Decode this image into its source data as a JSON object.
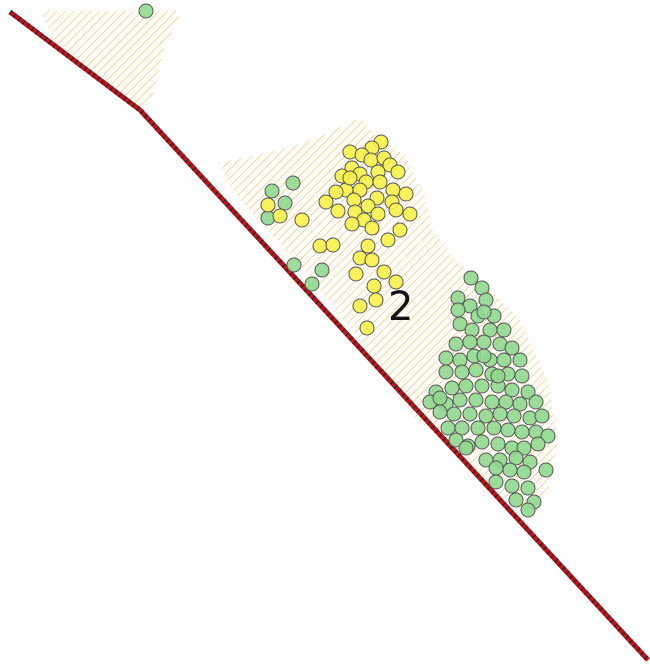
{
  "map": {
    "zone_label": "2",
    "colors": {
      "background": "#ffffff",
      "hatch": "#f5b041",
      "line_fill": "#c0121a",
      "line_dash": "#2b2b2b",
      "point_green": "#90d890",
      "point_yellow": "#f7f24a",
      "point_stroke": "#555555"
    },
    "legend_visible": false
  }
}
